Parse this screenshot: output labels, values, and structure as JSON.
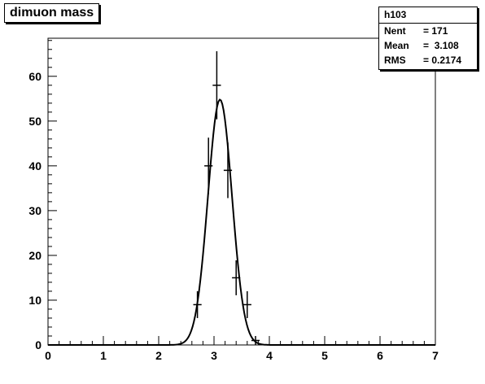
{
  "title": "dimuon mass",
  "stats": {
    "name": "h103",
    "rows": [
      {
        "label": "Nent",
        "eq": "=",
        "value": "171"
      },
      {
        "label": "Mean",
        "eq": "=",
        "value": " 3.108"
      },
      {
        "label": "RMS",
        "eq": "=",
        "value": "0.2174"
      }
    ]
  },
  "chart_data": {
    "type": "scatter",
    "title": "dimuon mass",
    "xlabel": "",
    "ylabel": "",
    "xlim": [
      0,
      7
    ],
    "ylim": [
      0,
      68.5
    ],
    "x_ticks": [
      0,
      1,
      2,
      3,
      4,
      5,
      6,
      7
    ],
    "y_ticks": [
      0,
      10,
      20,
      30,
      40,
      50,
      60
    ],
    "grid": false,
    "points": [
      {
        "x": 2.7,
        "y": 9,
        "err": 3.0,
        "xerr": 0.075
      },
      {
        "x": 2.9,
        "y": 40,
        "err": 6.3,
        "xerr": 0.075
      },
      {
        "x": 3.05,
        "y": 58,
        "err": 7.6,
        "xerr": 0.075
      },
      {
        "x": 3.25,
        "y": 39,
        "err": 6.2,
        "xerr": 0.075
      },
      {
        "x": 3.4,
        "y": 15,
        "err": 3.9,
        "xerr": 0.075
      },
      {
        "x": 3.6,
        "y": 9,
        "err": 3.0,
        "xerr": 0.075
      },
      {
        "x": 3.75,
        "y": 1,
        "err": 1.0,
        "xerr": 0.075
      }
    ],
    "fit": {
      "type": "gaussian",
      "amplitude": 54.8,
      "mean": 3.108,
      "sigma": 0.2174
    }
  }
}
